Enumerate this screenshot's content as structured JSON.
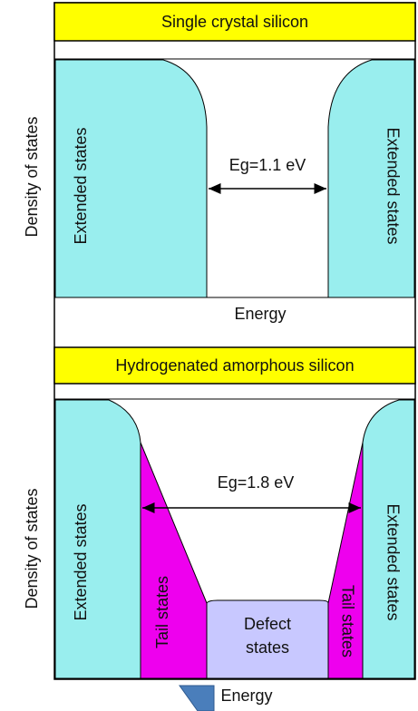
{
  "panels": [
    {
      "title": "Single crystal silicon",
      "y_label": "Density of states",
      "x_label": "Energy",
      "left_band": "Extended states",
      "right_band": "Extended states",
      "gap": "Eg=1.1 eV"
    },
    {
      "title": "Hydrogenated amorphous silicon",
      "y_label": "Density of states",
      "x_label": "Energy",
      "left_band": "Extended states",
      "right_band": "Extended states",
      "gap": "Eg=1.8 eV",
      "left_tail": "Tail states",
      "right_tail": "Tail states",
      "defect": "Defect states"
    }
  ]
}
